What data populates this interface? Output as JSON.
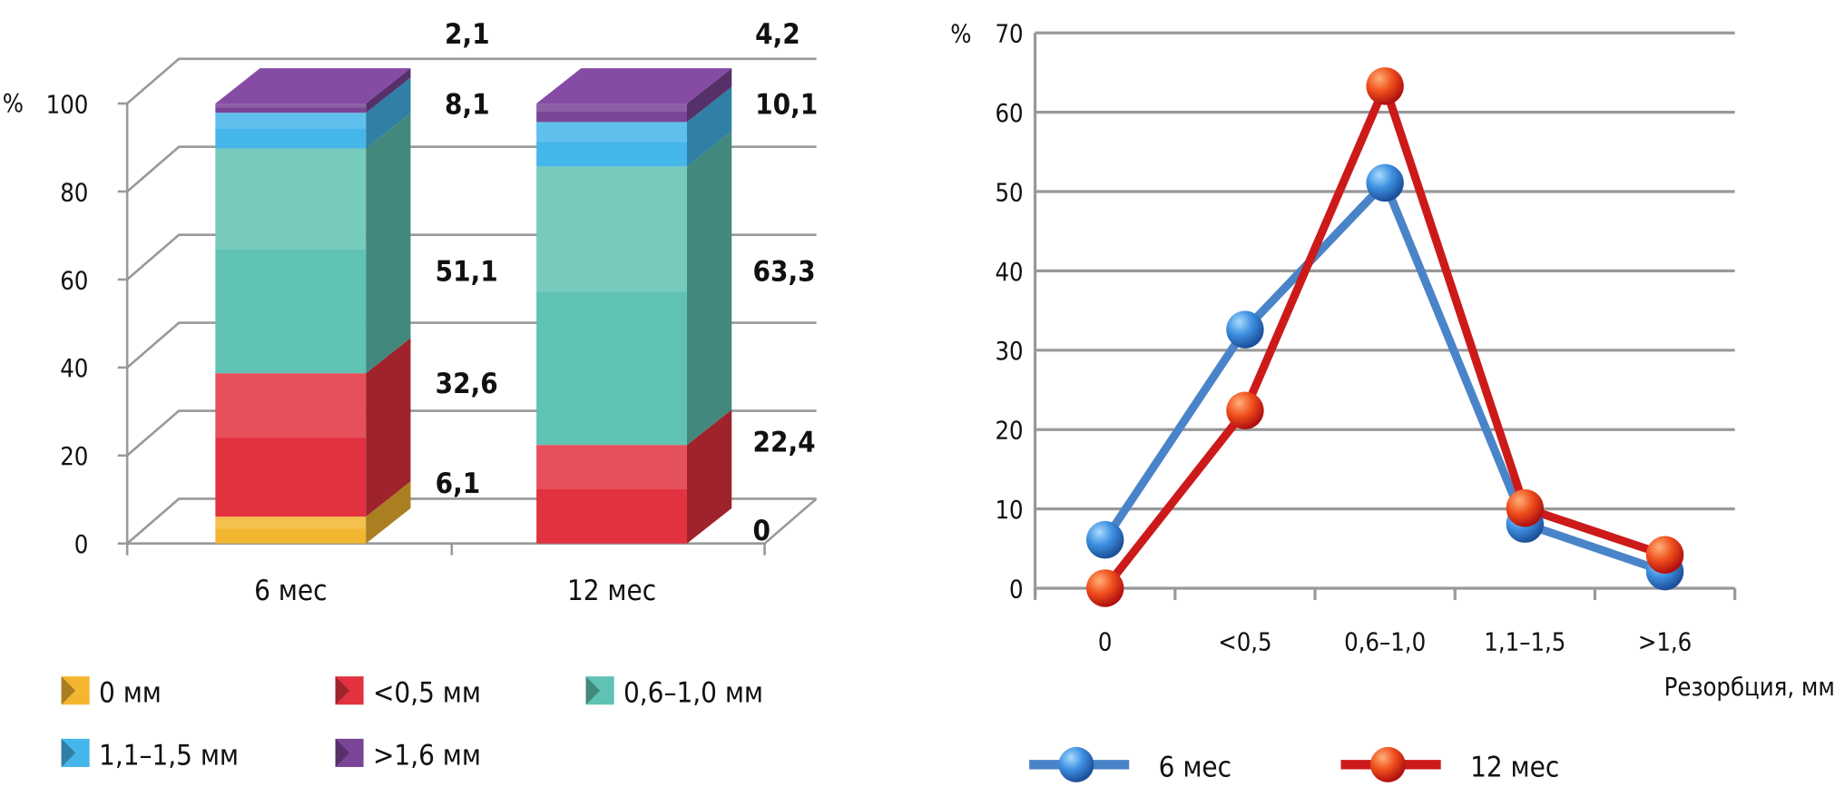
{
  "chart_data": [
    {
      "type": "bar",
      "stacked": true,
      "three_d": true,
      "ylabel": "%",
      "ylim": [
        0,
        100
      ],
      "yticks": [
        "0",
        "20",
        "40",
        "60",
        "80",
        "100"
      ],
      "categories": [
        "6 мес",
        "12 мес"
      ],
      "series": [
        {
          "name": "0 мм",
          "color": "#f2b630",
          "values": [
            6.1,
            0
          ],
          "labels": [
            "6,1",
            "0"
          ]
        },
        {
          "name": "<0,5 мм",
          "color": "#e2323f",
          "values": [
            32.6,
            22.4
          ],
          "labels": [
            "32,6",
            "22,4"
          ]
        },
        {
          "name": "0,6–1,0 мм",
          "color": "#5fc2b2",
          "values": [
            51.1,
            63.3
          ],
          "labels": [
            "51,1",
            "63,3"
          ]
        },
        {
          "name": "1,1–1,5 мм",
          "color": "#45b6ea",
          "values": [
            8.1,
            10.1
          ],
          "labels": [
            "8,1",
            "10,1"
          ]
        },
        {
          "name": ">1,6 мм",
          "color": "#7a4596",
          "values": [
            2.1,
            4.2
          ],
          "labels": [
            "2,1",
            "4,2"
          ]
        }
      ],
      "legend": "bottom"
    },
    {
      "type": "line",
      "ylabel": "%",
      "xlabel": "Резорбция, мм",
      "ylim": [
        0,
        70
      ],
      "yticks": [
        "0",
        "10",
        "20",
        "30",
        "40",
        "50",
        "60",
        "70"
      ],
      "categories": [
        "0",
        "<0,5",
        "0,6–1,0",
        "1,1–1,5",
        ">1,6"
      ],
      "grid": true,
      "series": [
        {
          "name": "6 мес",
          "color": "#4a84c8",
          "values": [
            6.1,
            32.6,
            51.1,
            8.1,
            2.1
          ]
        },
        {
          "name": "12 мес",
          "color": "#cc1a1a",
          "values": [
            0,
            22.4,
            63.3,
            10.1,
            4.2
          ]
        }
      ],
      "legend": "bottom"
    }
  ]
}
